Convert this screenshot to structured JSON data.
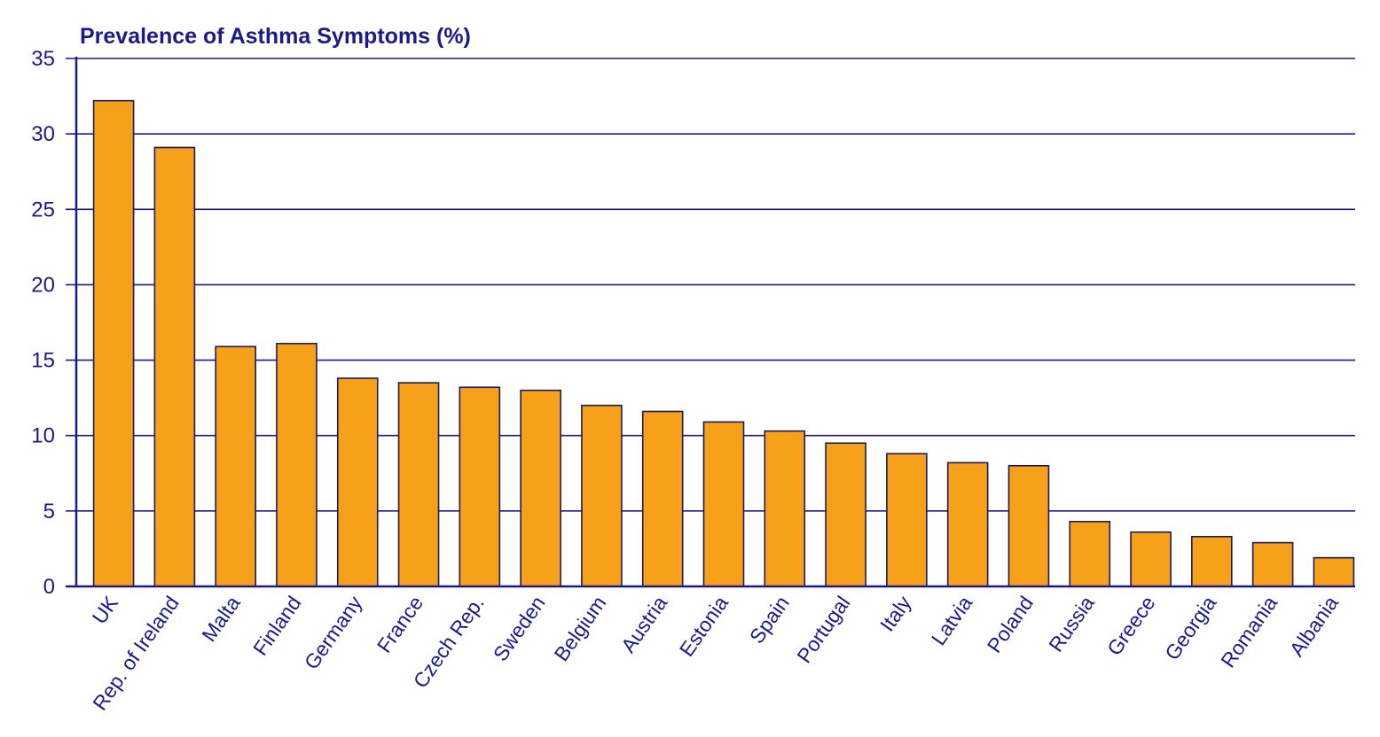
{
  "chart_data": {
    "type": "bar",
    "title": "Prevalence of Asthma Symptoms (%)",
    "xlabel": "",
    "ylabel": "",
    "ylim": [
      0,
      35
    ],
    "yticks": [
      "0",
      "5",
      "10",
      "15",
      "20",
      "25",
      "30",
      "35"
    ],
    "grid": true,
    "categories": [
      "UK",
      "Rep. of Ireland",
      "Malta",
      "Finland",
      "Germany",
      "France",
      "Czech Rep.",
      "Sweden",
      "Belgium",
      "Austria",
      "Estonia",
      "Spain",
      "Portugal",
      "Italy",
      "Latvia",
      "Poland",
      "Russia",
      "Greece",
      "Georgia",
      "Romania",
      "Albania"
    ],
    "values": [
      32.2,
      29.1,
      15.9,
      16.1,
      13.8,
      13.5,
      13.2,
      13.0,
      12.0,
      11.6,
      10.9,
      10.3,
      9.5,
      8.8,
      8.2,
      8.0,
      4.3,
      3.6,
      3.3,
      2.9,
      1.9
    ]
  },
  "colors": {
    "bar": "#f7a11a",
    "bar_outline": "#1a1a5c",
    "text": "#1a1a8c",
    "grid": "#1a1a8c"
  }
}
